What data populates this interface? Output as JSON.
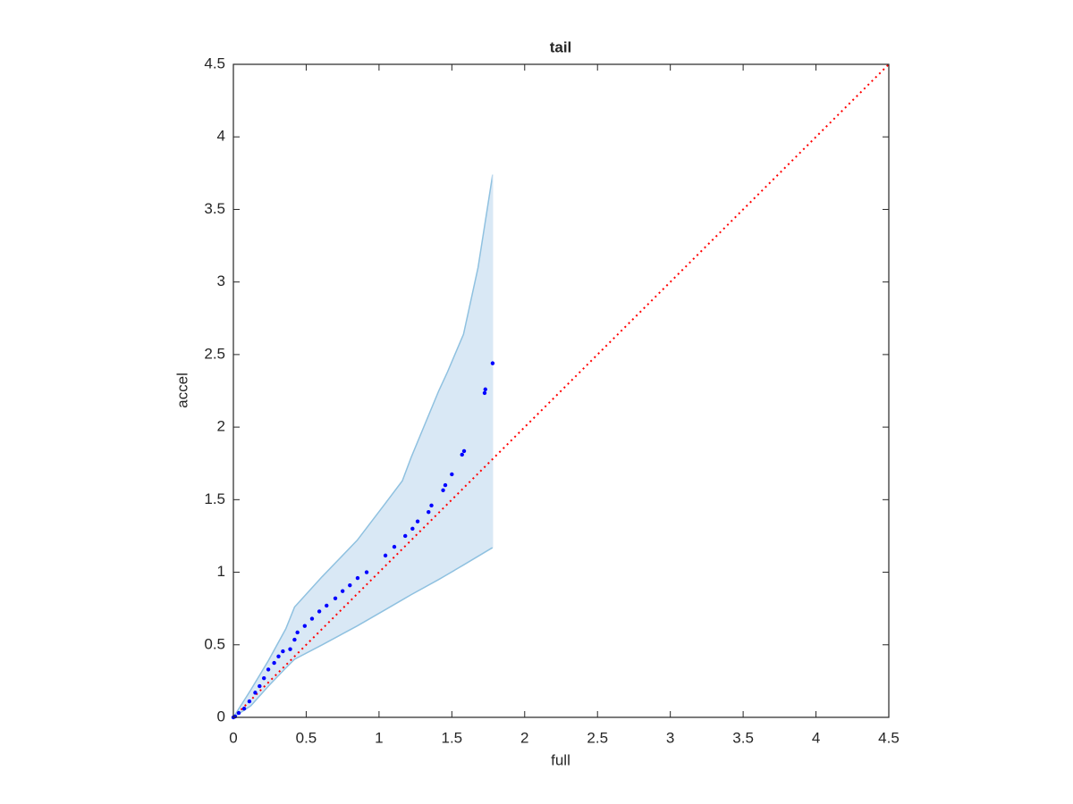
{
  "chart_data": {
    "type": "scatter",
    "title": "tail",
    "xlabel": "full",
    "ylabel": "accel",
    "xlim": [
      0,
      4.5
    ],
    "ylim": [
      0,
      4.5
    ],
    "xticks": [
      0,
      0.5,
      1,
      1.5,
      2,
      2.5,
      3,
      3.5,
      4,
      4.5
    ],
    "yticks": [
      0,
      0.5,
      1,
      1.5,
      2,
      2.5,
      3,
      3.5,
      4,
      4.5
    ],
    "grid": false,
    "box": true,
    "series": [
      {
        "color": "#0000ff",
        "x": [
          0,
          0.012,
          0.037,
          0.074,
          0.11,
          0.15,
          0.18,
          0.21,
          0.24,
          0.28,
          0.31,
          0.34,
          0.39,
          0.42,
          0.44,
          0.49,
          0.54,
          0.59,
          0.64,
          0.7,
          0.75,
          0.8,
          0.853,
          0.915,
          1.044,
          1.105,
          1.18,
          1.23,
          1.265,
          1.34,
          1.36,
          1.44,
          1.455,
          1.5,
          1.57,
          1.584,
          1.725,
          1.73,
          1.78
        ],
        "y": [
          0,
          0.006,
          0.03,
          0.06,
          0.11,
          0.17,
          0.215,
          0.27,
          0.33,
          0.375,
          0.42,
          0.455,
          0.47,
          0.535,
          0.585,
          0.63,
          0.68,
          0.73,
          0.77,
          0.82,
          0.87,
          0.91,
          0.96,
          1.0,
          1.115,
          1.175,
          1.25,
          1.3,
          1.35,
          1.415,
          1.46,
          1.565,
          1.6,
          1.675,
          1.81,
          1.835,
          2.235,
          2.26,
          2.44
        ]
      }
    ],
    "band": {
      "color": "#8fc1e0",
      "fill": "#d9e8f5",
      "x": [
        0,
        0.12,
        0.24,
        0.36,
        0.42,
        0.61,
        0.85,
        1.04,
        1.16,
        1.22,
        1.41,
        1.47,
        1.58,
        1.68,
        1.78
      ],
      "upper": [
        0,
        0.19,
        0.39,
        0.61,
        0.76,
        0.97,
        1.22,
        1.47,
        1.63,
        1.79,
        2.25,
        2.38,
        2.64,
        3.1,
        3.74
      ],
      "lower": [
        0,
        0.08,
        0.215,
        0.34,
        0.4,
        0.5,
        0.63,
        0.74,
        0.81,
        0.845,
        0.95,
        0.985,
        1.05,
        1.11,
        1.17
      ]
    },
    "reference_line": {
      "color": "#ff0000",
      "style": "dotted",
      "x": [
        0,
        4.5
      ],
      "y": [
        0,
        4.5
      ]
    }
  }
}
